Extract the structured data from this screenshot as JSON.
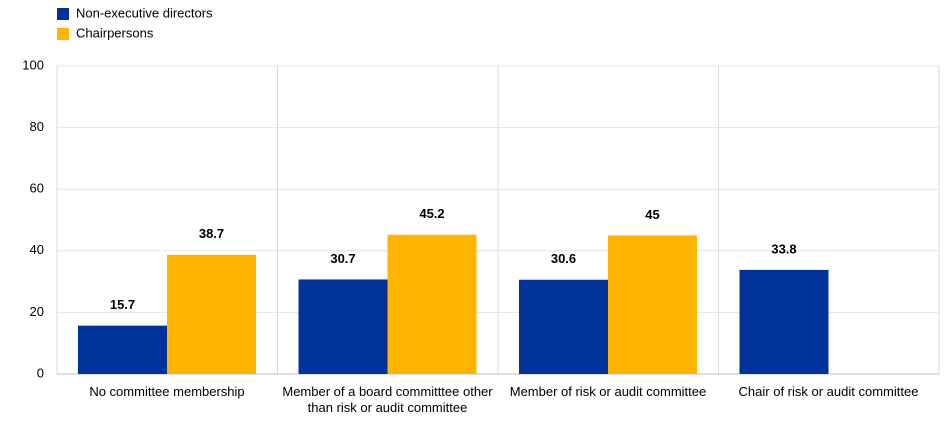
{
  "chart_data": {
    "type": "bar",
    "categories": [
      "No committee membership",
      "Member of a board committtee other than risk or audit committee",
      "Member of risk or audit committee",
      "Chair of risk or audit committee"
    ],
    "series": [
      {
        "name": "Non-executive directors",
        "color": "#003299",
        "values": [
          15.7,
          30.7,
          30.6,
          33.8
        ]
      },
      {
        "name": "Chairpersons",
        "color": "#ffb400",
        "values": [
          38.7,
          45.2,
          45,
          null
        ]
      }
    ],
    "ylim": [
      0,
      100
    ],
    "yticks": [
      0,
      20,
      40,
      60,
      80,
      100
    ],
    "grid": true,
    "legend": "top-left"
  }
}
